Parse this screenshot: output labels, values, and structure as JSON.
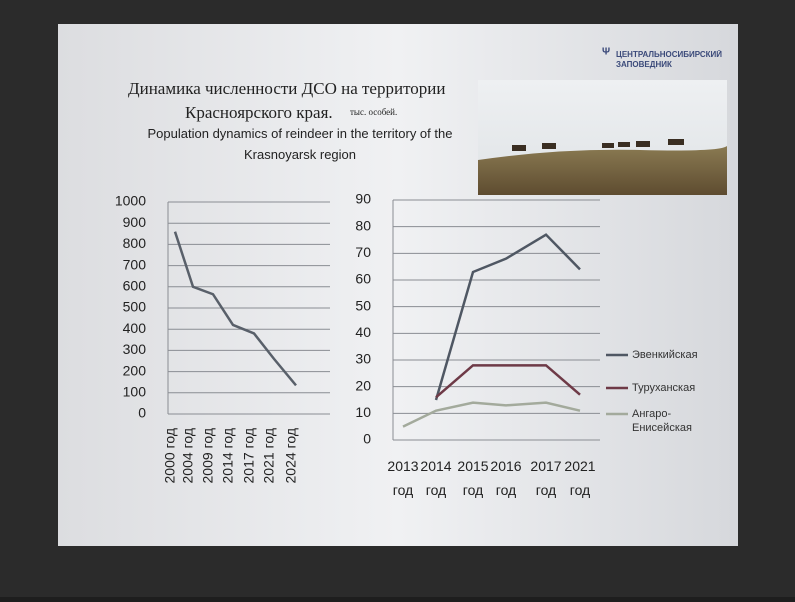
{
  "slide": {
    "title": "Динамика численности ДСО на территории",
    "title_line2": "Красноярского края.",
    "unit": "тыс. особей.",
    "subtitle": "Population dynamics of reindeer in the territory of the Krasnoyarsk region",
    "logo": "ЦЕНТРАЛЬНОСИБИРСКИЙ ЗАПОВЕДНИК"
  },
  "chart_data": [
    {
      "type": "line",
      "categories": [
        "2000 год",
        "2004 год",
        "2009 год",
        "2014 год",
        "2017 год",
        "2021 год",
        "2024 год"
      ],
      "values": [
        860,
        600,
        565,
        420,
        380,
        260,
        135
      ],
      "color": "#59606a",
      "ylim": [
        0,
        1000
      ],
      "yticks": [
        0,
        100,
        200,
        300,
        400,
        500,
        600,
        700,
        800,
        900,
        1000
      ],
      "grid": true
    },
    {
      "type": "line",
      "categories": [
        "2013 год",
        "2014 год",
        "2015 год",
        "2016 год",
        "2017 год",
        "2021 год"
      ],
      "series": [
        {
          "name": "Эвенкийская",
          "color": "#4f5763",
          "values": [
            null,
            15,
            63,
            68,
            77,
            64
          ]
        },
        {
          "name": "Туруханская",
          "color": "#6e3a47",
          "values": [
            null,
            16,
            28,
            28,
            28,
            17
          ]
        },
        {
          "name": "Ангаро-Енисейская",
          "color": "#a3aa9c",
          "values": [
            5,
            11,
            14,
            13,
            14,
            11
          ]
        }
      ],
      "ylim": [
        0,
        90
      ],
      "yticks": [
        0,
        10,
        20,
        30,
        40,
        50,
        60,
        70,
        80,
        90
      ],
      "grid": true,
      "legend": "right"
    }
  ]
}
